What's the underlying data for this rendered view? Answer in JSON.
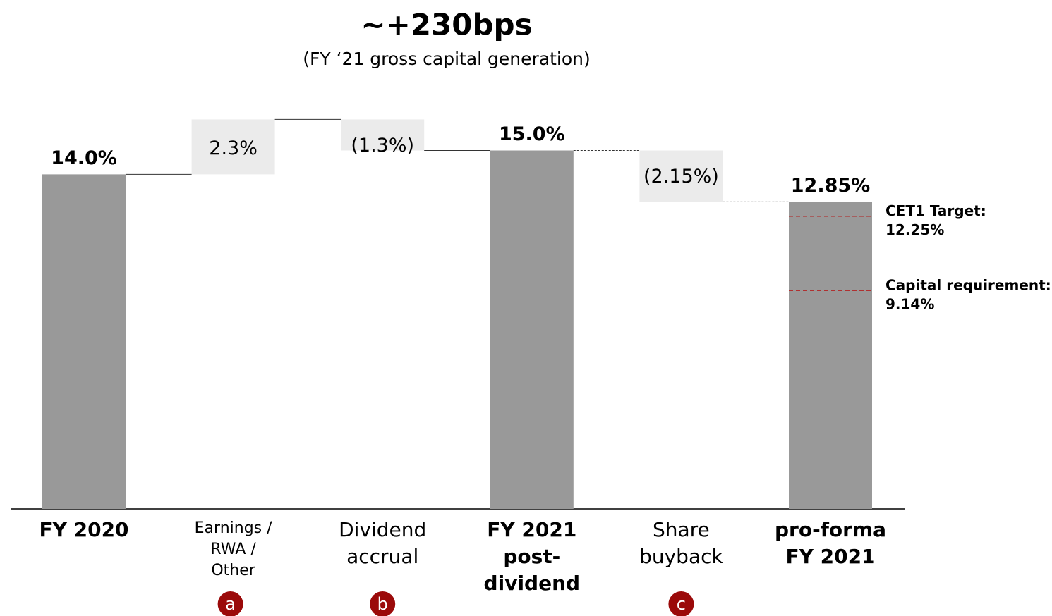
{
  "chart_data": {
    "type": "waterfall",
    "title": "~+230bps",
    "subtitle": "(FY ‘21 gross capital generation)",
    "categories": [
      [
        "FY 2020"
      ],
      [
        "Earnings /",
        "RWA /",
        "Other"
      ],
      [
        "Dividend",
        "accrual"
      ],
      [
        "FY 2021",
        "post-",
        "dividend"
      ],
      [
        "Share",
        "buyback"
      ],
      [
        "pro-forma",
        "FY 2021"
      ]
    ],
    "measures": [
      "total",
      "relative",
      "relative",
      "total",
      "relative",
      "total"
    ],
    "values": [
      14.0,
      2.3,
      -1.3,
      15.0,
      -2.15,
      12.85
    ],
    "value_labels": [
      "14.0%",
      "2.3%",
      "(1.3%)",
      "15.0%",
      "(2.15%)",
      "12.85%"
    ],
    "badges": [
      null,
      "a",
      "b",
      null,
      "c",
      null
    ],
    "total_color": "#999999",
    "delta_color": "#ebebeb",
    "title_color": "#9b0a0a",
    "badge_color": "#9b0a0a",
    "reference_lines": [
      {
        "label": "CET1 Target:",
        "value": 12.25,
        "value_label": "12.25%",
        "color": "#b22222"
      },
      {
        "label": "Capital requirement:",
        "value": 9.14,
        "value_label": "9.14%",
        "color": "#b22222"
      }
    ]
  }
}
